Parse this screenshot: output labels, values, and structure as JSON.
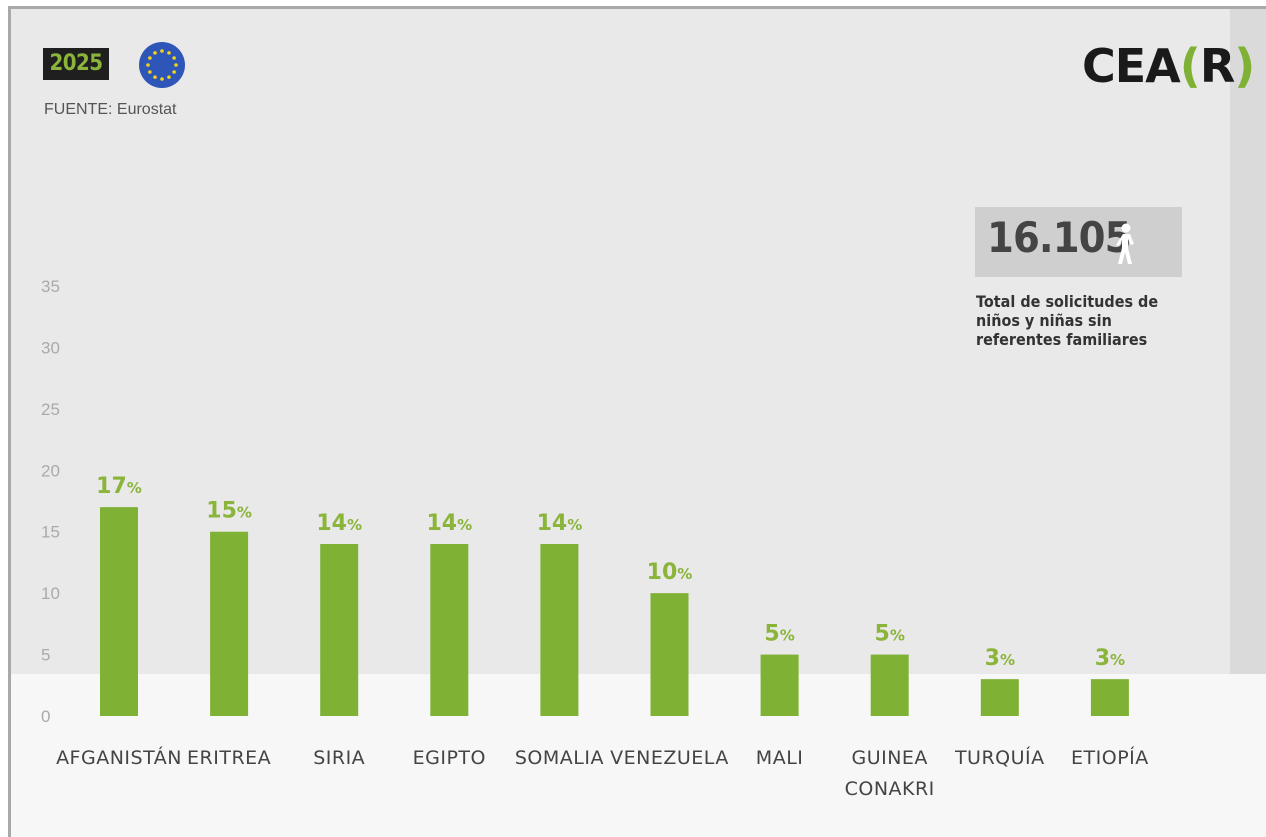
{
  "header": {
    "year": "2025",
    "source": "FUENTE: Eurostat",
    "logo_main": "CEA",
    "logo_open": "(",
    "logo_letter": "R",
    "logo_close": ")"
  },
  "total": {
    "value": "16.105",
    "description": "Total de solicitudes de niños y niñas sin referentes familiares"
  },
  "colors": {
    "bar": "#7fb135",
    "value_label": "#8ab43a",
    "year_text": "#8ab43a",
    "eu_blue": "#2e55b8",
    "eu_star": "#f3d21a"
  },
  "icons": [
    "eu-flag-icon",
    "child-walking-icon"
  ],
  "chart_data": {
    "type": "bar",
    "categories": [
      "AFGANISTÁN",
      "ERITREA",
      "SIRIA",
      "EGIPTO",
      "SOMALIA",
      "VENEZUELA",
      "MALI",
      "GUINEA CONAKRI",
      "TURQUÍA",
      "ETIOPÍA"
    ],
    "category_lines": [
      [
        "AFGANISTÁN"
      ],
      [
        "ERITREA"
      ],
      [
        "SIRIA"
      ],
      [
        "EGIPTO"
      ],
      [
        "SOMALIA"
      ],
      [
        "VENEZUELA"
      ],
      [
        "MALI"
      ],
      [
        "GUINEA",
        "CONAKRI"
      ],
      [
        "TURQUÍA"
      ],
      [
        "ETIOPÍA"
      ]
    ],
    "values": [
      17,
      15,
      14,
      14,
      14,
      10,
      5,
      5,
      3,
      3
    ],
    "value_unit": "%",
    "yticks": [
      "0",
      "5",
      "10",
      "15",
      "20",
      "25",
      "30",
      "35"
    ],
    "ylim": [
      0,
      35
    ],
    "grid": false
  }
}
